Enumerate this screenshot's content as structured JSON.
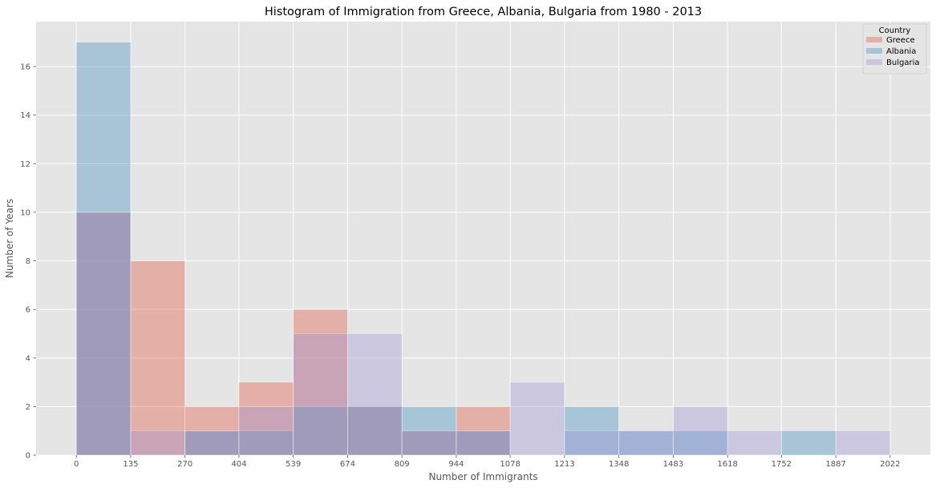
{
  "chart_data": {
    "type": "histogram",
    "title": "Histogram of Immigration from Greece, Albania, Bulgaria from 1980 - 2013",
    "xlabel": "Number of Immigrants",
    "ylabel": "Number of Years",
    "bin_edges": [
      0,
      135,
      270,
      404,
      539,
      674,
      809,
      944,
      1078,
      1213,
      1348,
      1483,
      1618,
      1752,
      1887,
      2022
    ],
    "x_tick_labels": [
      "0",
      "135",
      "270",
      "404",
      "539",
      "674",
      "809",
      "944",
      "1078",
      "1213",
      "1348",
      "1483",
      "1618",
      "1752",
      "1887",
      "2022"
    ],
    "y_ticks": [
      0,
      2,
      4,
      6,
      8,
      10,
      12,
      14,
      16
    ],
    "xlim": [
      -100,
      2122
    ],
    "ylim": [
      0,
      17.85
    ],
    "grid": true,
    "style": "ggplot",
    "legend": {
      "title": "Country",
      "placement": "top-right"
    },
    "series": [
      {
        "name": "Greece",
        "color": "#e24a33",
        "counts": [
          10,
          8,
          2,
          3,
          6,
          2,
          1,
          2,
          0,
          0,
          0,
          0,
          0,
          0,
          0
        ]
      },
      {
        "name": "Albania",
        "color": "#348abd",
        "counts": [
          17,
          0,
          1,
          1,
          2,
          2,
          2,
          1,
          0,
          2,
          1,
          1,
          0,
          1,
          0
        ]
      },
      {
        "name": "Bulgaria",
        "color": "#988ed5",
        "counts": [
          10,
          1,
          1,
          2,
          5,
          5,
          1,
          1,
          3,
          1,
          1,
          2,
          1,
          0,
          1
        ]
      }
    ]
  }
}
